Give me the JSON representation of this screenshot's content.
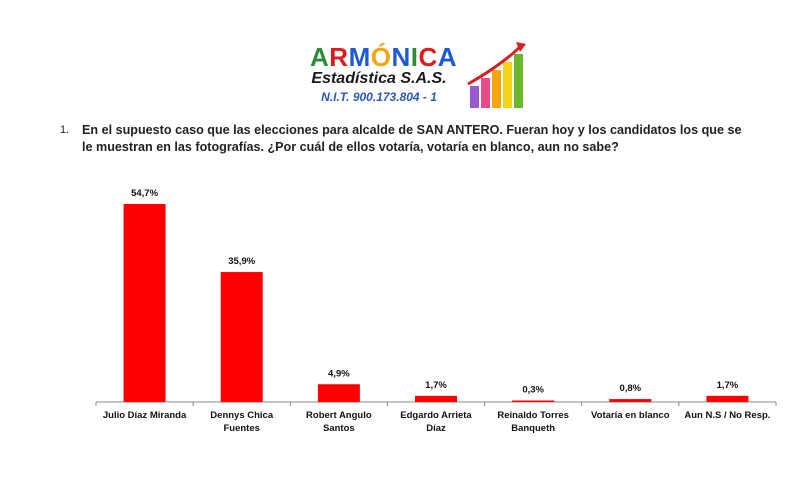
{
  "header": {
    "brand_letters": [
      {
        "ch": "A",
        "color": "#2f8a3a"
      },
      {
        "ch": "R",
        "color": "#e01b1b"
      },
      {
        "ch": "M",
        "color": "#1f5bd0"
      },
      {
        "ch": "Ó",
        "color": "#f5a40a"
      },
      {
        "ch": "N",
        "color": "#1f5bd0"
      },
      {
        "ch": "I",
        "color": "#2f8a3a"
      },
      {
        "ch": "C",
        "color": "#e01b1b"
      },
      {
        "ch": "A",
        "color": "#1f5bd0"
      }
    ],
    "subtitle": "Estadística S.A.S.",
    "nit": "N.I.T. 900.173.804 - 1"
  },
  "question": {
    "number": "1.",
    "text": "En el supuesto caso que las elecciones para alcalde de SAN ANTERO. Fueran hoy y los candidatos los que se le muestran en las fotografías. ¿Por cuál de ellos votaría, votaría en blanco, aun no sabe?"
  },
  "chart_data": {
    "type": "bar",
    "title": "",
    "xlabel": "",
    "ylabel": "",
    "categories": [
      [
        "Julio Díaz Miranda"
      ],
      [
        "Dennys Chica",
        "Fuentes"
      ],
      [
        "Robert Angulo",
        "Santos"
      ],
      [
        "Edgardo Arrieta",
        "Díaz"
      ],
      [
        "Reinaldo Torres",
        "Banqueth"
      ],
      [
        "Votaría en blanco"
      ],
      [
        "Aun N.S / No Resp."
      ]
    ],
    "values": [
      54.7,
      35.9,
      4.9,
      1.7,
      0.3,
      0.8,
      1.7
    ],
    "value_labels": [
      "54,7%",
      "35,9%",
      "4,9%",
      "1,7%",
      "0,3%",
      "0,8%",
      "1,7%"
    ],
    "ylim": [
      0,
      54.7
    ],
    "bar_color": "#ff0000",
    "grid": false,
    "legend": "none"
  }
}
